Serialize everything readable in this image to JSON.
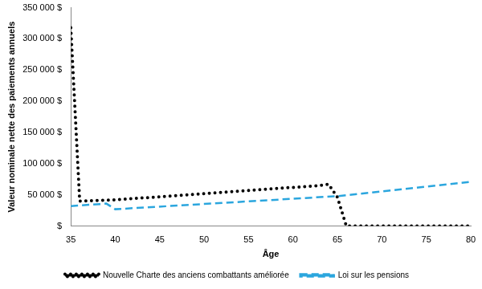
{
  "chart_data": {
    "type": "line",
    "x_label": "Âge",
    "y_label": "Valeur nominale nette des paiements annuels",
    "xlim": [
      35,
      80
    ],
    "xticks": [
      35,
      40,
      45,
      50,
      55,
      60,
      65,
      70,
      75,
      80
    ],
    "ylim": [
      0,
      350000
    ],
    "yticks": [
      {
        "value": 0,
        "label": "$"
      },
      {
        "value": 50000,
        "label": "50 000 $"
      },
      {
        "value": 100000,
        "label": "100 000 $"
      },
      {
        "value": 150000,
        "label": "150 000 $"
      },
      {
        "value": 200000,
        "label": "200 000 $"
      },
      {
        "value": 250000,
        "label": "250 000 $"
      },
      {
        "value": 300000,
        "label": "300 000 $"
      },
      {
        "value": 350000,
        "label": "350 000 $"
      }
    ],
    "grid": false,
    "legend": "bottom",
    "series": [
      {
        "name": "Nouvelle Charte des anciens combattants améliorée",
        "color": "#000000",
        "line_style": "dotted",
        "x": [
          35,
          36,
          37,
          38,
          39,
          40,
          41,
          42,
          43,
          44,
          45,
          46,
          47,
          48,
          49,
          50,
          51,
          52,
          53,
          54,
          55,
          56,
          57,
          58,
          59,
          60,
          61,
          62,
          63,
          64,
          65,
          66,
          67,
          68,
          69,
          70,
          71,
          72,
          73,
          74,
          75,
          76,
          77,
          78,
          79,
          80
        ],
        "values": [
          318000,
          40000,
          40500,
          41000,
          41500,
          42000,
          43000,
          44000,
          45000,
          46000,
          47000,
          48000,
          49000,
          50000,
          51000,
          52000,
          53000,
          54000,
          55000,
          56000,
          57000,
          58000,
          59000,
          60000,
          61000,
          62000,
          63000,
          64000,
          65000,
          67000,
          46000,
          0,
          0,
          0,
          0,
          0,
          0,
          0,
          0,
          0,
          0,
          0,
          0,
          0,
          0,
          0
        ]
      },
      {
        "name": "Loi sur les pensions",
        "color": "#2ba6de",
        "line_style": "dashed",
        "x": [
          35,
          39,
          40,
          65,
          80
        ],
        "values": [
          32000,
          36000,
          27000,
          48000,
          71000
        ]
      }
    ]
  }
}
